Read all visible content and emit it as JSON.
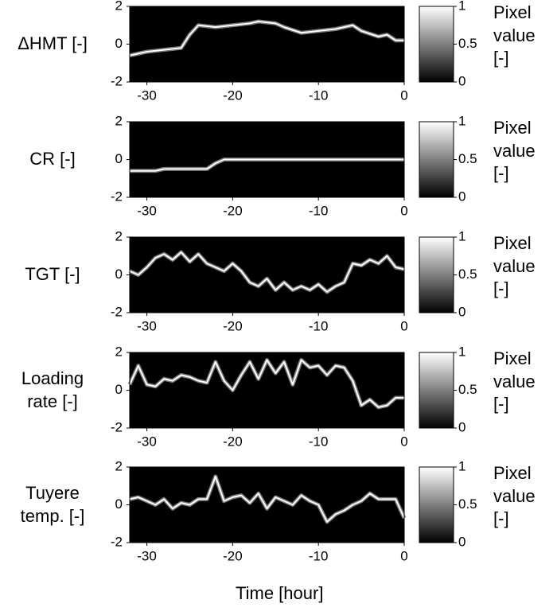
{
  "xlabel": "Time [hour]",
  "chart_data": [
    {
      "type": "line",
      "ylabel": "ΔHMT [-]",
      "xlim": [
        -32,
        0
      ],
      "xticks": [
        -30,
        -20,
        -10,
        0
      ],
      "ylim": [
        -2,
        2
      ],
      "yticks": [
        -2,
        0,
        2
      ],
      "clim": [
        0,
        1
      ],
      "cticks": [
        0,
        0.5,
        1
      ],
      "clabel": "Pixel value [-]",
      "x": [
        -32,
        -30,
        -28,
        -26,
        -25,
        -24,
        -22,
        -20,
        -18,
        -17,
        -15,
        -14,
        -12,
        -10,
        -8,
        -6,
        -5,
        -3,
        -2,
        -1,
        0
      ],
      "values": [
        -0.6,
        -0.4,
        -0.3,
        -0.2,
        0.5,
        1.0,
        0.9,
        1.0,
        1.1,
        1.2,
        1.1,
        0.9,
        0.6,
        0.7,
        0.8,
        1.0,
        0.7,
        0.4,
        0.5,
        0.2,
        0.2
      ]
    },
    {
      "type": "line",
      "ylabel": "CR [-]",
      "xlim": [
        -32,
        0
      ],
      "xticks": [
        -30,
        -20,
        -10,
        0
      ],
      "ylim": [
        -2,
        2
      ],
      "yticks": [
        -2,
        0,
        2
      ],
      "clim": [
        0,
        1
      ],
      "cticks": [
        0,
        0.5,
        1
      ],
      "clabel": "Pixel value [-]",
      "x": [
        -32,
        -29,
        -28,
        -23,
        -22,
        -21,
        0
      ],
      "values": [
        -0.6,
        -0.6,
        -0.5,
        -0.5,
        -0.2,
        0,
        0
      ]
    },
    {
      "type": "line",
      "ylabel": "TGT [-]",
      "xlim": [
        -32,
        0
      ],
      "xticks": [
        -30,
        -20,
        -10,
        0
      ],
      "ylim": [
        -2,
        2
      ],
      "yticks": [
        -2,
        0,
        2
      ],
      "clim": [
        0,
        1
      ],
      "cticks": [
        0,
        0.5,
        1
      ],
      "clabel": "Pixel value [-]",
      "x": [
        -32,
        -31,
        -30,
        -29,
        -28,
        -27,
        -26,
        -25,
        -24,
        -23,
        -22,
        -21,
        -20,
        -19,
        -18,
        -17,
        -16,
        -15,
        -14,
        -13,
        -12,
        -11,
        -10,
        -9,
        -8,
        -7,
        -6,
        -5,
        -4,
        -3,
        -2,
        -1,
        0
      ],
      "values": [
        0.2,
        0.0,
        0.4,
        0.9,
        1.1,
        0.8,
        1.2,
        0.7,
        1.1,
        0.6,
        0.4,
        0.2,
        0.6,
        0.2,
        -0.4,
        -0.6,
        -0.2,
        -0.8,
        -0.4,
        -0.8,
        -0.6,
        -0.8,
        -0.5,
        -0.9,
        -0.6,
        -0.4,
        0.6,
        0.5,
        0.8,
        0.6,
        1.0,
        0.4,
        0.3
      ]
    },
    {
      "type": "line",
      "ylabel": "Loading rate [-]",
      "xlim": [
        -32,
        0
      ],
      "xticks": [
        -30,
        -20,
        -10,
        0
      ],
      "ylim": [
        -2,
        2
      ],
      "yticks": [
        -2,
        0,
        2
      ],
      "clim": [
        0,
        1
      ],
      "cticks": [
        0,
        0.5,
        1
      ],
      "clabel": "Pixel value [-]",
      "x": [
        -32,
        -31,
        -30,
        -29,
        -28,
        -27,
        -26,
        -25,
        -24,
        -23,
        -22,
        -21,
        -20,
        -19,
        -18,
        -17,
        -16,
        -15,
        -14,
        -13,
        -12,
        -11,
        -10,
        -9,
        -8,
        -7,
        -6,
        -5,
        -4,
        -3,
        -2,
        -1,
        0
      ],
      "values": [
        0.3,
        1.3,
        0.3,
        0.2,
        0.6,
        0.5,
        0.8,
        0.7,
        0.5,
        0.4,
        1.5,
        0.5,
        0.0,
        0.8,
        1.5,
        0.6,
        1.6,
        0.9,
        1.5,
        0.3,
        1.6,
        1.2,
        1.3,
        0.8,
        1.3,
        1.2,
        0.5,
        -0.8,
        -0.5,
        -0.9,
        -0.8,
        -0.4,
        -0.4
      ]
    },
    {
      "type": "line",
      "ylabel": "Tuyere temp. [-]",
      "xlim": [
        -32,
        0
      ],
      "xticks": [
        -30,
        -20,
        -10,
        0
      ],
      "ylim": [
        -2,
        2
      ],
      "yticks": [
        -2,
        0,
        2
      ],
      "clim": [
        0,
        1
      ],
      "cticks": [
        0,
        0.5,
        1
      ],
      "clabel": "Pixel value [-]",
      "x": [
        -32,
        -31,
        -30,
        -29,
        -28,
        -27,
        -26,
        -25,
        -24,
        -23,
        -22,
        -21,
        -20,
        -19,
        -18,
        -17,
        -16,
        -15,
        -14,
        -13,
        -12,
        -11,
        -10,
        -9,
        -8,
        -7,
        -6,
        -5,
        -4,
        -3,
        -2,
        -1,
        0
      ],
      "values": [
        0.3,
        0.4,
        0.2,
        0.0,
        0.3,
        -0.2,
        0.1,
        0.0,
        0.3,
        0.3,
        1.5,
        0.2,
        0.4,
        0.5,
        0.1,
        0.6,
        -0.2,
        0.4,
        0.2,
        0.0,
        0.5,
        0.2,
        0.0,
        -0.9,
        -0.5,
        -0.3,
        0.0,
        0.2,
        0.6,
        0.3,
        0.3,
        0.3,
        -0.7
      ]
    }
  ]
}
